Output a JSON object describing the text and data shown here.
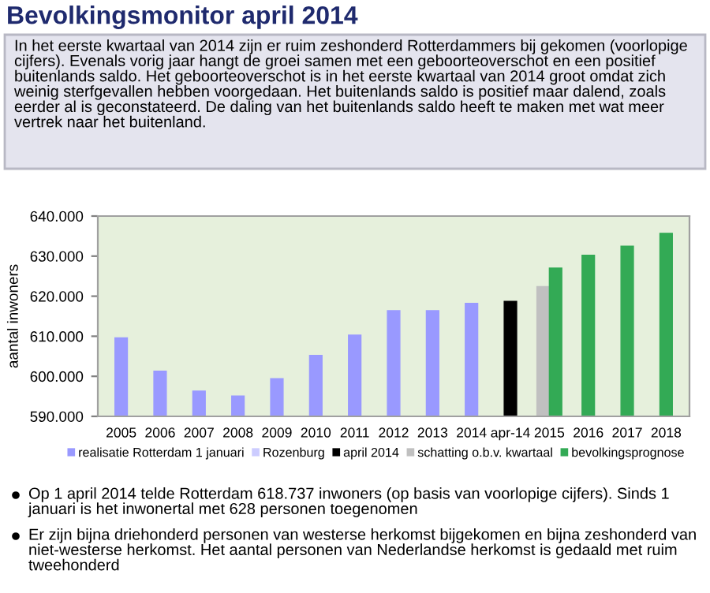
{
  "chart_data": {
    "type": "bar",
    "title": "Bevolkingsmonitor april 2014",
    "annotations": [
      "In het eerste kwartaal van 2014 zijn er ruim zeshonderd Rotterdammers bij gekomen (voorlopige cijfers). Evenals vorig jaar hangt de groei samen met een geboorteoverschot en een positief buitenlands saldo. Het geboorteoverschot is in het eerste kwartaal van 2014 groot omdat zich weinig sterfgevallen hebben voorgedaan. Het buitenlands saldo is positief maar dalend, zoals eerder al is geconstateerd. De daling van het buitenlands saldo heeft te maken met wat meer vertrek naar het buitenland.",
      "Op 1 april 2014 telde Rotterdam 618.737 inwoners (op basis van voorlopige cijfers). Sinds 1 januari is het inwonertal met 628 personen toegenomen",
      "Er zijn bijna driehonderd personen van westerse herkomst bijgekomen en bijna zeshonderd van niet-westerse herkomst. Het aantal personen van Nederlandse herkomst is gedaald met ruim tweehonderd"
    ],
    "ylabel": "aantal inwoners",
    "categories": [
      "2005",
      "2006",
      "2007",
      "2008",
      "2009",
      "2010",
      "2011",
      "2012",
      "2013",
      "2014",
      "apr-14",
      "2015",
      "2016",
      "2017",
      "2018"
    ],
    "series": [
      {
        "name": "realisatie Rotterdam 1 januari",
        "color": "#9999ff",
        "values": [
          609600,
          601300,
          596300,
          595100,
          599400,
          605200,
          610300,
          616400,
          616400,
          618200,
          null,
          null,
          null,
          null,
          null
        ]
      },
      {
        "name": "Rozenburg",
        "color": "#ccccff",
        "values": [
          null,
          null,
          null,
          null,
          null,
          null,
          null,
          null,
          null,
          null,
          null,
          null,
          null,
          null,
          null
        ]
      },
      {
        "name": "april 2014",
        "color": "#000000",
        "values": [
          null,
          null,
          null,
          null,
          null,
          null,
          null,
          null,
          null,
          null,
          618700,
          null,
          null,
          null,
          null
        ]
      },
      {
        "name": "schatting o.b.v. kwartaal",
        "color": "#c0c0c0",
        "values": [
          null,
          null,
          null,
          null,
          null,
          null,
          null,
          null,
          null,
          null,
          null,
          622400,
          null,
          null,
          null
        ]
      },
      {
        "name": "bevolkingsprognose",
        "color": "#33aa55",
        "values": [
          null,
          null,
          null,
          null,
          null,
          null,
          null,
          null,
          null,
          null,
          null,
          627000,
          630200,
          632500,
          635700
        ]
      }
    ],
    "ylim": [
      590000,
      640000
    ],
    "yticks": [
      {
        "value": 590000,
        "label": "590.000"
      },
      {
        "value": 600000,
        "label": "600.000"
      },
      {
        "value": 610000,
        "label": "610.000"
      },
      {
        "value": 620000,
        "label": "620.000"
      },
      {
        "value": 630000,
        "label": "630.000"
      },
      {
        "value": 640000,
        "label": "640.000"
      }
    ],
    "legend": "bottom",
    "grid": false
  }
}
